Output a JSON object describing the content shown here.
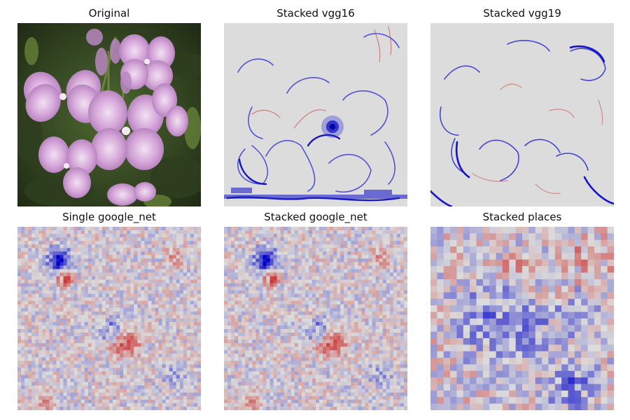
{
  "figure": {
    "panels": [
      {
        "id": "original",
        "title": "Original",
        "kind": "photo"
      },
      {
        "id": "stacked-vgg16",
        "title": "Stacked vgg16",
        "kind": "saliency-edges"
      },
      {
        "id": "stacked-vgg19",
        "title": "Stacked vgg19",
        "kind": "saliency-edges"
      },
      {
        "id": "single-google-net",
        "title": "Single google_net",
        "kind": "saliency-grid"
      },
      {
        "id": "stacked-google-net",
        "title": "Stacked google_net",
        "kind": "saliency-grid"
      },
      {
        "id": "stacked-places",
        "title": "Stacked places",
        "kind": "saliency-grid-coarse"
      }
    ],
    "colormap": {
      "negative": "#0000cc",
      "neutral": "#dcdcdc",
      "positive": "#cc0000"
    },
    "photo_colors": {
      "petal": "#c89ad0",
      "petal_light": "#e6cdea",
      "foliage": "#3a4f2a",
      "stem": "#6c7a3e"
    }
  }
}
